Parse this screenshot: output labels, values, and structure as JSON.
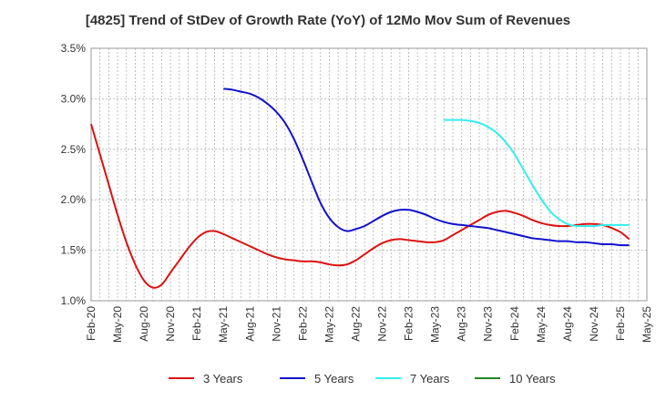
{
  "chart_data": {
    "type": "line",
    "title": "[4825]  Trend of StDev of Growth Rate (YoY) of 12Mo Mov Sum of Revenues",
    "xlabel": "",
    "ylabel": "",
    "ylim": [
      1.0,
      3.5
    ],
    "y_ticks": [
      "1.0%",
      "1.5%",
      "2.0%",
      "2.5%",
      "3.0%",
      "3.5%"
    ],
    "y_tick_values": [
      1.0,
      1.5,
      2.0,
      2.5,
      3.0,
      3.5
    ],
    "x_tick_labels": [
      "Feb-20",
      "May-20",
      "Aug-20",
      "Nov-20",
      "Feb-21",
      "May-21",
      "Aug-21",
      "Nov-21",
      "Feb-22",
      "May-22",
      "Aug-22",
      "Nov-22",
      "Feb-23",
      "May-23",
      "Aug-23",
      "Nov-23",
      "Feb-24",
      "May-24",
      "Aug-24",
      "Nov-24",
      "Feb-25",
      "May-25"
    ],
    "x_month_count": 64,
    "grid": true,
    "legend_position": "bottom",
    "series": [
      {
        "name": "3 Years",
        "color": "#dd1111",
        "start_index": 0,
        "values": [
          2.75,
          2.45,
          2.15,
          1.85,
          1.58,
          1.36,
          1.2,
          1.13,
          1.16,
          1.28,
          1.4,
          1.52,
          1.62,
          1.68,
          1.69,
          1.66,
          1.62,
          1.58,
          1.54,
          1.5,
          1.46,
          1.43,
          1.41,
          1.4,
          1.39,
          1.39,
          1.38,
          1.36,
          1.35,
          1.36,
          1.4,
          1.46,
          1.52,
          1.57,
          1.6,
          1.61,
          1.6,
          1.59,
          1.58,
          1.58,
          1.6,
          1.65,
          1.7,
          1.75,
          1.8,
          1.85,
          1.88,
          1.89,
          1.87,
          1.84,
          1.8,
          1.77,
          1.75,
          1.74,
          1.74,
          1.75,
          1.76,
          1.76,
          1.75,
          1.72,
          1.68,
          1.61
        ]
      },
      {
        "name": "5 Years",
        "color": "#1111cc",
        "start_index": 15,
        "values": [
          3.1,
          3.09,
          3.07,
          3.05,
          3.01,
          2.95,
          2.87,
          2.76,
          2.6,
          2.4,
          2.18,
          1.97,
          1.82,
          1.73,
          1.69,
          1.71,
          1.74,
          1.79,
          1.84,
          1.88,
          1.9,
          1.9,
          1.88,
          1.85,
          1.81,
          1.78,
          1.76,
          1.75,
          1.74,
          1.73,
          1.72,
          1.7,
          1.68,
          1.66,
          1.64,
          1.62,
          1.61,
          1.6,
          1.59,
          1.59,
          1.58,
          1.58,
          1.57,
          1.56,
          1.56,
          1.55,
          1.55
        ]
      },
      {
        "name": "7 Years",
        "color": "#33eeee",
        "start_index": 40,
        "values": [
          2.79,
          2.79,
          2.79,
          2.78,
          2.76,
          2.72,
          2.66,
          2.57,
          2.45,
          2.3,
          2.15,
          2.01,
          1.89,
          1.81,
          1.76,
          1.74,
          1.74,
          1.74,
          1.75,
          1.75,
          1.75,
          1.75
        ]
      },
      {
        "name": "10 Years",
        "color": "#228822",
        "start_index": 0,
        "values": []
      }
    ]
  }
}
